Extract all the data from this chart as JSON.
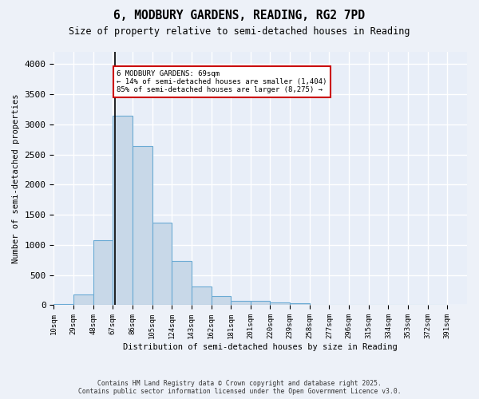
{
  "title1": "6, MODBURY GARDENS, READING, RG2 7PD",
  "title2": "Size of property relative to semi-detached houses in Reading",
  "xlabel": "Distribution of semi-detached houses by size in Reading",
  "ylabel": "Number of semi-detached properties",
  "bar_color": "#c8d8e8",
  "bar_edge_color": "#6aaad4",
  "background_color": "#e8eef8",
  "grid_color": "#ffffff",
  "bin_labels": [
    "10sqm",
    "29sqm",
    "48sqm",
    "67sqm",
    "86sqm",
    "105sqm",
    "124sqm",
    "143sqm",
    "162sqm",
    "181sqm",
    "201sqm",
    "220sqm",
    "239sqm",
    "258sqm",
    "277sqm",
    "296sqm",
    "315sqm",
    "334sqm",
    "353sqm",
    "372sqm",
    "391sqm"
  ],
  "bar_heights": [
    20,
    175,
    1080,
    3140,
    2640,
    1370,
    740,
    310,
    155,
    75,
    75,
    40,
    30,
    5,
    5,
    5,
    5,
    5,
    5,
    5
  ],
  "property_line_x_label": "67sqm",
  "annotation_line1": "6 MODBURY GARDENS: 69sqm",
  "annotation_line2": "← 14% of semi-detached houses are smaller (1,404)",
  "annotation_line3": "85% of semi-detached houses are larger (8,275) →",
  "annotation_box_color": "#ffffff",
  "annotation_border_color": "#cc0000",
  "property_line_color": "#000000",
  "ylim": [
    0,
    4200
  ],
  "yticks": [
    0,
    500,
    1000,
    1500,
    2000,
    2500,
    3000,
    3500,
    4000
  ],
  "footer_line1": "Contains HM Land Registry data © Crown copyright and database right 2025.",
  "footer_line2": "Contains public sector information licensed under the Open Government Licence v3.0."
}
